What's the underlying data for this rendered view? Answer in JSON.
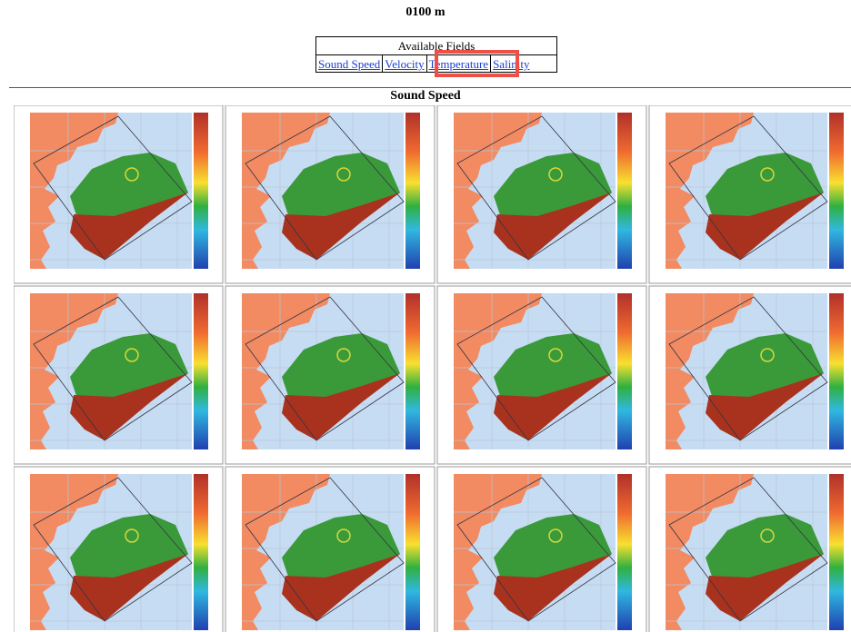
{
  "header": {
    "depth": "0100 m"
  },
  "fields": {
    "caption": "Available Fields",
    "links": [
      "Sound Speed",
      "Velocity",
      "Temperature",
      "Salinity"
    ]
  },
  "section": {
    "title": "Sound Speed"
  }
}
